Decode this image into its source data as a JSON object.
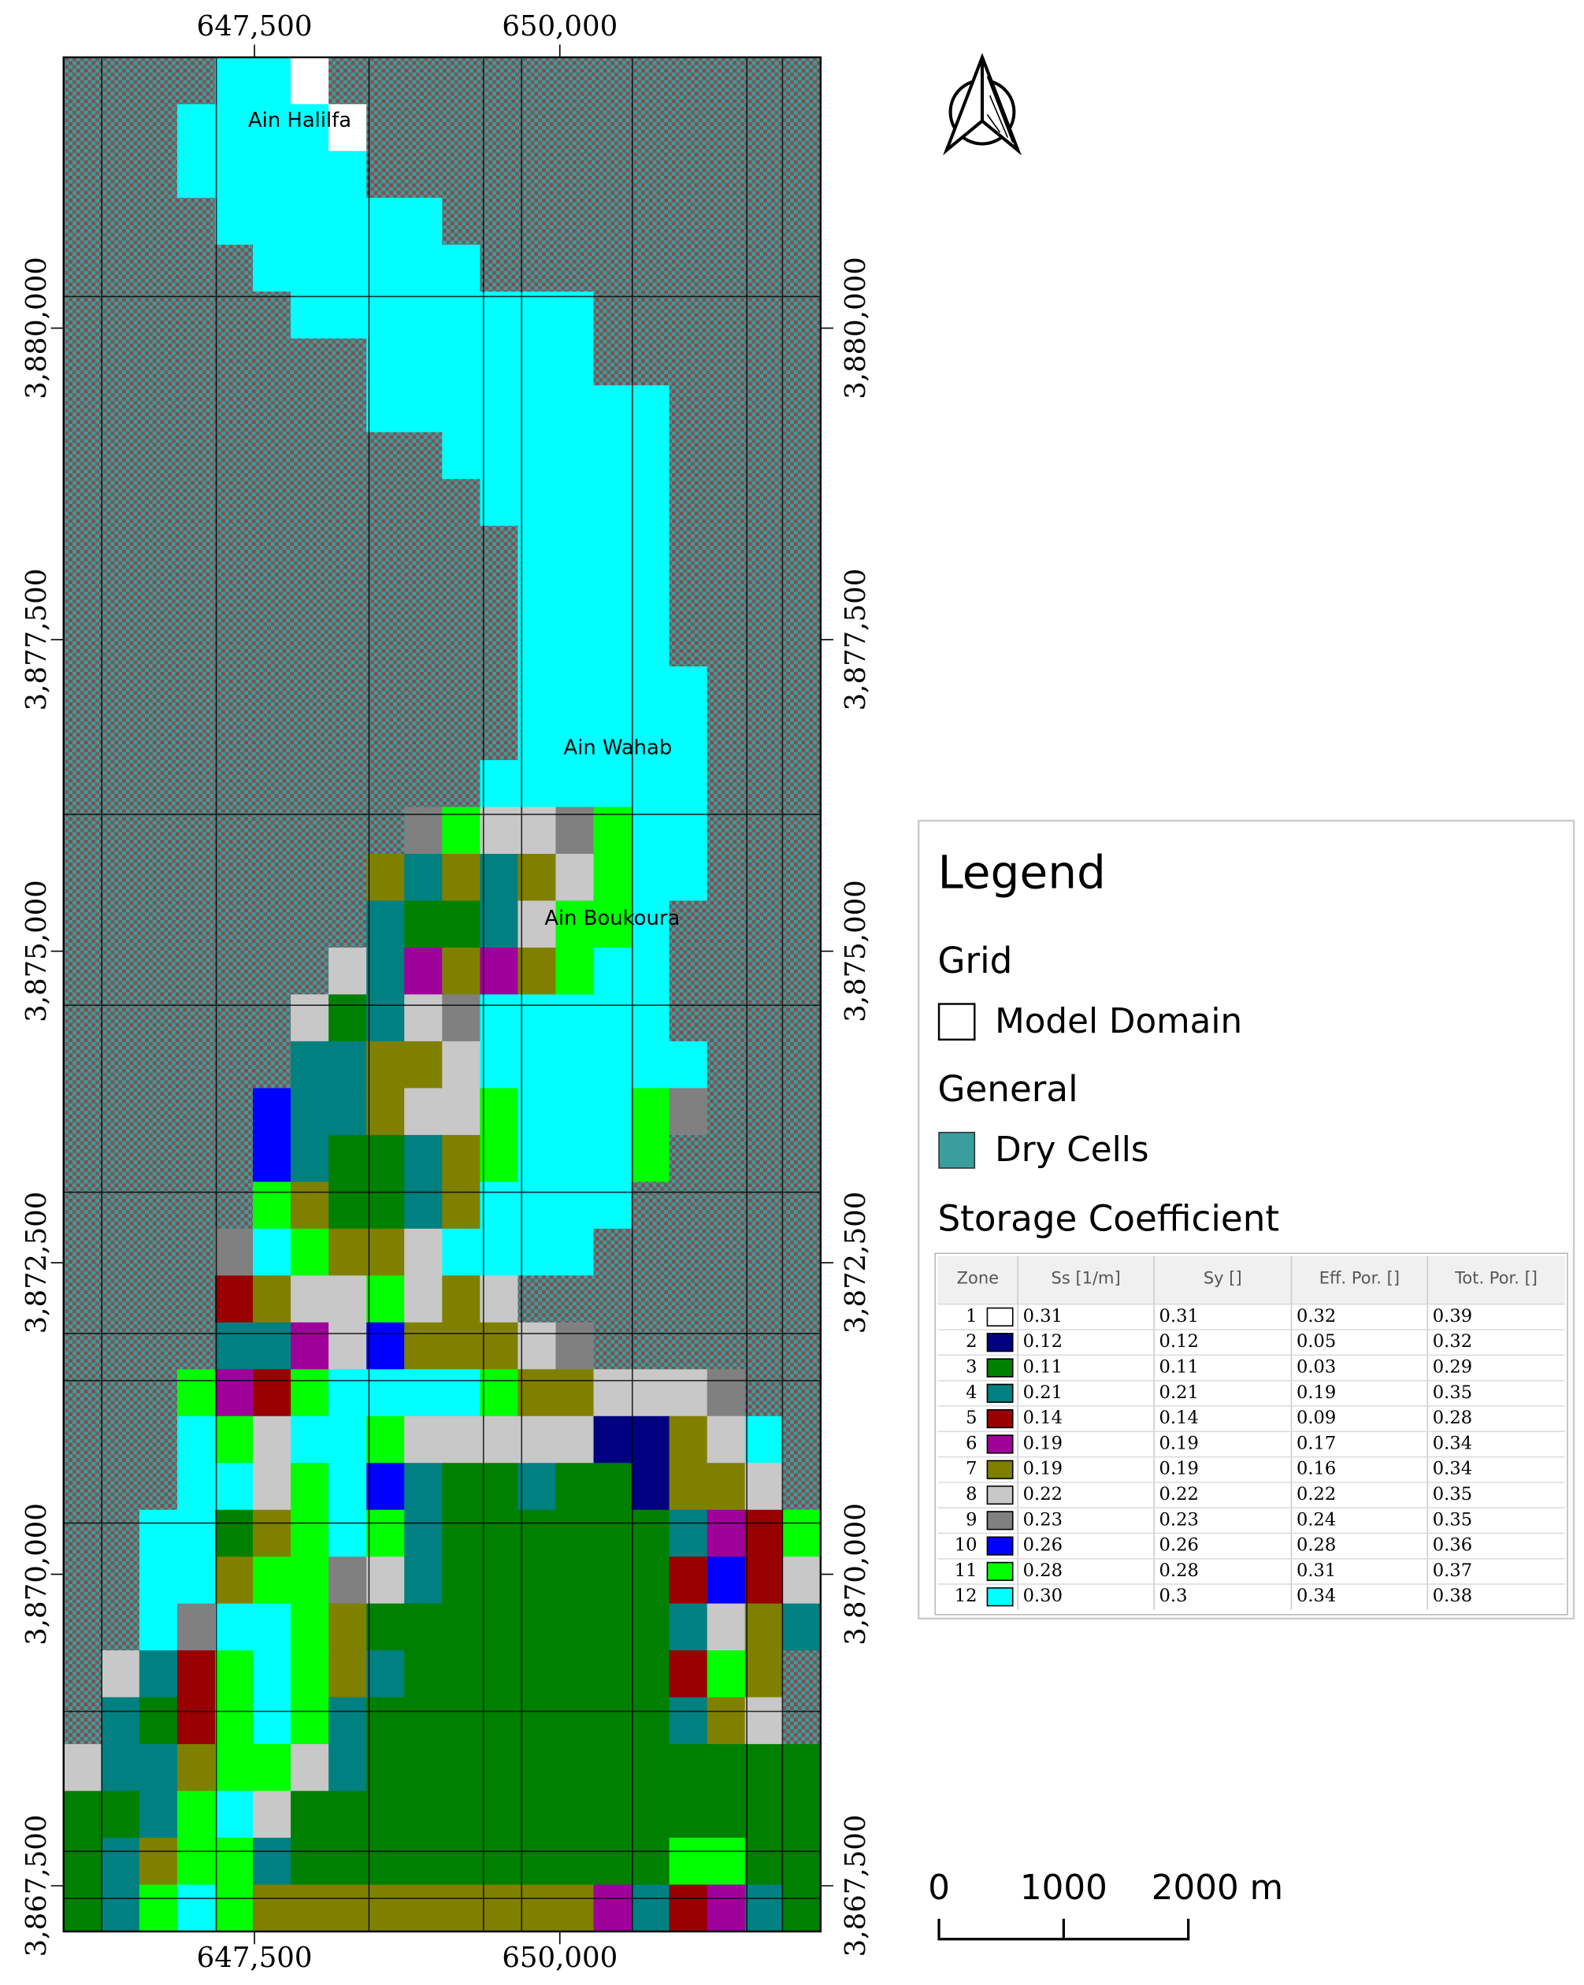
{
  "map": {
    "x_axis": {
      "range": [
        645937.5,
        652135
      ],
      "ticks": [
        {
          "value": 647500,
          "label": "647,500"
        },
        {
          "value": 650000,
          "label": "650,000"
        }
      ]
    },
    "y_axis": {
      "range": [
        3867133,
        3882173
      ],
      "ticks": [
        {
          "value": 3880000,
          "label": "3,880,000"
        },
        {
          "value": 3877500,
          "label": "3,877,500"
        },
        {
          "value": 3875000,
          "label": "3,875,000"
        },
        {
          "value": 3872500,
          "label": "3,872,500"
        },
        {
          "value": 3870000,
          "label": "3,870,000"
        },
        {
          "value": 3867500,
          "label": "3,867,500"
        }
      ]
    },
    "places": [
      "Ain Halilfa",
      "Ain Wahab",
      "Ain Boukoura"
    ]
  },
  "legend": {
    "title": "Legend",
    "grid_heading": "Grid",
    "grid_item": "Model Domain",
    "general_heading": "General",
    "general_item": "Dry Cells",
    "dry_color": "#3a9e9e",
    "storage_heading": "Storage Coefficient",
    "table": {
      "header": [
        "Zone",
        "Ss [1/m]",
        "Sy []",
        "Eff. Por. []",
        "Tot. Por. []"
      ],
      "rows": [
        {
          "color": "#ffffff",
          "cells": [
            "1",
            "0.31",
            "0.31",
            "0.32",
            "0.39"
          ]
        },
        {
          "color": "#000080",
          "cells": [
            "2",
            "0.12",
            "0.12",
            "0.05",
            "0.32"
          ]
        },
        {
          "color": "#008000",
          "cells": [
            "3",
            "0.11",
            "0.11",
            "0.03",
            "0.29"
          ]
        },
        {
          "color": "#008080",
          "cells": [
            "4",
            "0.21",
            "0.21",
            "0.19",
            "0.35"
          ]
        },
        {
          "color": "#990000",
          "cells": [
            "5",
            "0.14",
            "0.14",
            "0.09",
            "0.28"
          ]
        },
        {
          "color": "#a0009a",
          "cells": [
            "6",
            "0.19",
            "0.19",
            "0.17",
            "0.34"
          ]
        },
        {
          "color": "#808000",
          "cells": [
            "7",
            "0.19",
            "0.19",
            "0.16",
            "0.34"
          ]
        },
        {
          "color": "#c8c8c8",
          "cells": [
            "8",
            "0.22",
            "0.22",
            "0.22",
            "0.35"
          ]
        },
        {
          "color": "#808080",
          "cells": [
            "9",
            "0.23",
            "0.23",
            "0.24",
            "0.35"
          ]
        },
        {
          "color": "#0000ff",
          "cells": [
            "10",
            "0.26",
            "0.26",
            "0.28",
            "0.36"
          ]
        },
        {
          "color": "#00ff00",
          "cells": [
            "11",
            "0.28",
            "0.28",
            "0.31",
            "0.37"
          ]
        },
        {
          "color": "#00ffff",
          "cells": [
            "12",
            "0.30",
            "0.3",
            "0.34",
            "0.38"
          ]
        }
      ]
    }
  },
  "scale_bar": [
    "0",
    "1000",
    "2000 m"
  ]
}
